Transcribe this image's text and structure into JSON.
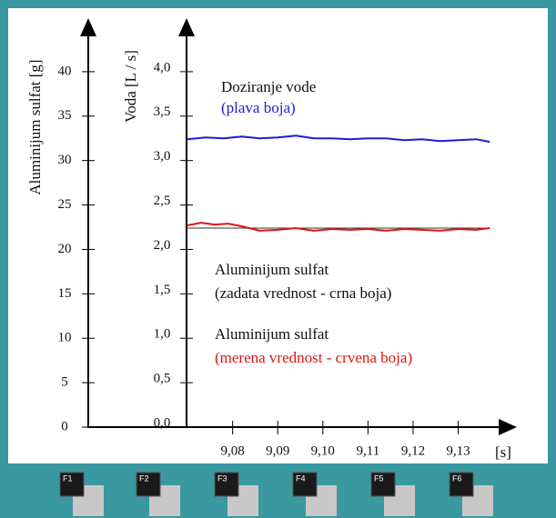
{
  "chart_data": {
    "type": "line",
    "y_label": "Aluminijum sulfat  [g]",
    "y2_label": "Voda  [L / s]",
    "x_label": "[s]",
    "xlim": [
      9.048,
      9.1424
    ],
    "xticks": [
      {
        "value": 9.08,
        "label": "9,08"
      },
      {
        "value": 9.09,
        "label": "9,09"
      },
      {
        "value": 9.1,
        "label": "9,10"
      },
      {
        "value": 9.11,
        "label": "9,11"
      },
      {
        "value": 9.12,
        "label": "9,12"
      },
      {
        "value": 9.13,
        "label": "9,13"
      }
    ],
    "ylim": [
      0,
      45
    ],
    "yticks": [
      0,
      5,
      10,
      15,
      20,
      25,
      30,
      35,
      40
    ],
    "y2lim": [
      0,
      4.5
    ],
    "y2ticks": [
      {
        "value": 0,
        "label": "0,0"
      },
      {
        "value": 0.5,
        "label": "0,5"
      },
      {
        "value": 1.0,
        "label": "1,0"
      },
      {
        "value": 1.5,
        "label": "1,5"
      },
      {
        "value": 2.0,
        "label": "2,0"
      },
      {
        "value": 2.5,
        "label": "2,5"
      },
      {
        "value": 3.0,
        "label": "3,0"
      },
      {
        "value": 3.5,
        "label": "3,5"
      },
      {
        "value": 4.0,
        "label": "4,0"
      }
    ],
    "series": [
      {
        "color": "#1c1cd8",
        "axis": "y2",
        "x": [
          9.07,
          9.074,
          9.078,
          9.082,
          9.086,
          9.09,
          9.094,
          9.098,
          9.102,
          9.106,
          9.11,
          9.114,
          9.118,
          9.122,
          9.126,
          9.13,
          9.134,
          9.137
        ],
        "values": [
          3.24,
          3.26,
          3.25,
          3.27,
          3.25,
          3.26,
          3.28,
          3.25,
          3.25,
          3.24,
          3.25,
          3.25,
          3.23,
          3.24,
          3.22,
          3.23,
          3.24,
          3.21
        ]
      },
      {
        "color": "#333333",
        "x": [
          9.07,
          9.137
        ],
        "values": [
          22.4,
          22.4
        ]
      },
      {
        "color": "#e01414",
        "x": [
          9.07,
          9.073,
          9.076,
          9.079,
          9.082,
          9.086,
          9.09,
          9.094,
          9.098,
          9.102,
          9.106,
          9.11,
          9.114,
          9.118,
          9.122,
          9.126,
          9.13,
          9.134,
          9.137
        ],
        "values": [
          22.7,
          23.0,
          22.8,
          22.9,
          22.6,
          22.1,
          22.2,
          22.4,
          22.1,
          22.3,
          22.2,
          22.3,
          22.1,
          22.3,
          22.2,
          22.1,
          22.3,
          22.2,
          22.4
        ]
      }
    ],
    "annotations": [
      {
        "text": "Doziranje vode",
        "color": "#111111"
      },
      {
        "text": "(plava boja)",
        "color": "#1c1cd8"
      },
      {
        "text": "Aluminijum sulfat",
        "color": "#111111"
      },
      {
        "text": "(zadata vrednost - crna boja)",
        "color": "#111111"
      },
      {
        "text": "Aluminijum sulfat",
        "color": "#111111"
      },
      {
        "text": "(merena vrednost - crvena boja)",
        "color": "#e01414"
      }
    ]
  },
  "function_keys": [
    "F1",
    "F2",
    "F3",
    "F4",
    "F5",
    "F6"
  ]
}
